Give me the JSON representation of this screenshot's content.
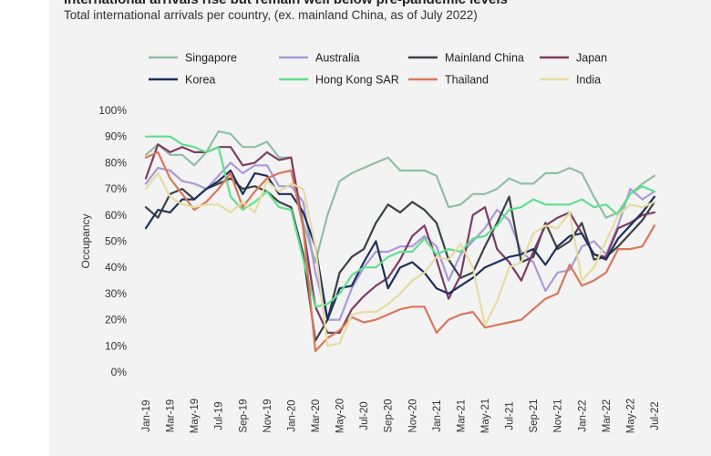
{
  "header": {
    "title": "International arrivals rise but remain well below pre-pandemic levels",
    "subtitle": "Total international arrivals per country, (ex. mainland China, as of July 2022)"
  },
  "colors": {
    "Singapore": "#8fbfa6",
    "Australia": "#a99bd9",
    "Mainland China": "#3b4144",
    "Japan": "#7d3c63",
    "Korea": "#1e2f5c",
    "Hong Kong SAR": "#5fe08c",
    "Thailand": "#d9775a",
    "India": "#e6dca2"
  },
  "chart_data": {
    "type": "line",
    "title": "International arrivals rise but remain well below pre-pandemic levels",
    "subtitle": "Total international arrivals per country, (ex. mainland China, as of July 2022)",
    "ylabel": "Occupancy",
    "xlabel": "",
    "ylim": [
      0,
      100
    ],
    "yticks": [
      "0%",
      "10%",
      "20%",
      "30%",
      "40%",
      "50%",
      "60%",
      "70%",
      "80%",
      "90%",
      "100%"
    ],
    "xticks": [
      "Jan-19",
      "Mar-19",
      "May-19",
      "Jul-19",
      "Sep-19",
      "Nov-19",
      "Jan-20",
      "Mar-20",
      "May-20",
      "Jul-20",
      "Sep-20",
      "Nov-20",
      "Jan-21",
      "Mar-21",
      "May-21",
      "Jul-21",
      "Sep-21",
      "Nov-21",
      "Jan-22",
      "Mar-22",
      "May-22",
      "Jul-22"
    ],
    "x": [
      "Jan-19",
      "Feb-19",
      "Mar-19",
      "Apr-19",
      "May-19",
      "Jun-19",
      "Jul-19",
      "Aug-19",
      "Sep-19",
      "Oct-19",
      "Nov-19",
      "Dec-19",
      "Jan-20",
      "Feb-20",
      "Mar-20",
      "Apr-20",
      "May-20",
      "Jun-20",
      "Jul-20",
      "Aug-20",
      "Sep-20",
      "Oct-20",
      "Nov-20",
      "Dec-20",
      "Jan-21",
      "Feb-21",
      "Mar-21",
      "Apr-21",
      "May-21",
      "Jun-21",
      "Jul-21",
      "Aug-21",
      "Sep-21",
      "Oct-21",
      "Nov-21",
      "Dec-21",
      "Jan-22",
      "Feb-22",
      "Mar-22",
      "Apr-22",
      "May-22",
      "Jun-22",
      "Jul-22"
    ],
    "legend_position": "top",
    "grid": false,
    "series": [
      {
        "name": "Singapore",
        "values": [
          83,
          87,
          83,
          83,
          79,
          84,
          92,
          91,
          86,
          86,
          88,
          82,
          82,
          57,
          42,
          60,
          73,
          76,
          78,
          80,
          82,
          77,
          77,
          77,
          75,
          63,
          64,
          68,
          68,
          70,
          74,
          72,
          72,
          76,
          76,
          78,
          76,
          67,
          59,
          61,
          68,
          72,
          75
        ]
      },
      {
        "name": "Australia",
        "values": [
          72,
          78,
          77,
          73,
          72,
          70,
          75,
          80,
          76,
          79,
          79,
          71,
          71,
          65,
          38,
          20,
          20,
          32,
          40,
          46,
          46,
          48,
          48,
          52,
          48,
          35,
          45,
          50,
          55,
          62,
          58,
          46,
          42,
          31,
          38,
          39,
          48,
          50,
          45,
          56,
          70,
          66,
          69
        ]
      },
      {
        "name": "Mainland China",
        "values": [
          63,
          59,
          68,
          70,
          66,
          70,
          72,
          74,
          70,
          71,
          69,
          65,
          63,
          45,
          12,
          20,
          38,
          44,
          47,
          57,
          64,
          61,
          65,
          62,
          57,
          43,
          36,
          38,
          48,
          57,
          67,
          42,
          44,
          57,
          47,
          50,
          57,
          43,
          44,
          48,
          53,
          58,
          65
        ]
      },
      {
        "name": "Japan",
        "values": [
          74,
          87,
          84,
          86,
          84,
          84,
          86,
          86,
          79,
          80,
          84,
          81,
          82,
          55,
          25,
          15,
          15,
          24,
          29,
          33,
          36,
          43,
          52,
          56,
          43,
          28,
          37,
          60,
          63,
          47,
          42,
          35,
          46,
          56,
          59,
          61,
          53,
          45,
          44,
          55,
          57,
          60,
          61
        ]
      },
      {
        "name": "Korea",
        "values": [
          55,
          62,
          61,
          66,
          66,
          70,
          73,
          77,
          68,
          76,
          75,
          68,
          68,
          61,
          48,
          20,
          32,
          33,
          42,
          50,
          32,
          40,
          42,
          38,
          32,
          30,
          33,
          36,
          40,
          42,
          44,
          45,
          47,
          41,
          48,
          52,
          53,
          45,
          43,
          51,
          56,
          61,
          67
        ]
      },
      {
        "name": "Hong Kong SAR",
        "values": [
          90,
          90,
          90,
          87,
          86,
          84,
          86,
          67,
          62,
          65,
          69,
          63,
          62,
          43,
          25,
          26,
          30,
          37,
          40,
          40,
          44,
          46,
          46,
          51,
          45,
          47,
          46,
          51,
          52,
          56,
          62,
          63,
          66,
          64,
          64,
          64,
          66,
          63,
          64,
          60,
          68,
          71,
          69
        ]
      },
      {
        "name": "Thailand",
        "values": [
          82,
          84,
          74,
          68,
          62,
          65,
          70,
          76,
          63,
          69,
          74,
          76,
          77,
          55,
          8,
          13,
          16,
          21,
          19,
          20,
          22,
          24,
          25,
          25,
          15,
          20,
          22,
          23,
          17,
          18,
          19,
          20,
          24,
          28,
          30,
          41,
          33,
          35,
          38,
          47,
          47,
          48,
          56
        ]
      },
      {
        "name": "India",
        "values": [
          70,
          76,
          67,
          64,
          63,
          64,
          64,
          61,
          65,
          61,
          73,
          69,
          72,
          70,
          48,
          10,
          11,
          22,
          23,
          23,
          26,
          30,
          35,
          38,
          44,
          43,
          49,
          40,
          18,
          27,
          40,
          42,
          53,
          56,
          55,
          61,
          35,
          40,
          50,
          60,
          64,
          63,
          65
        ]
      }
    ]
  }
}
